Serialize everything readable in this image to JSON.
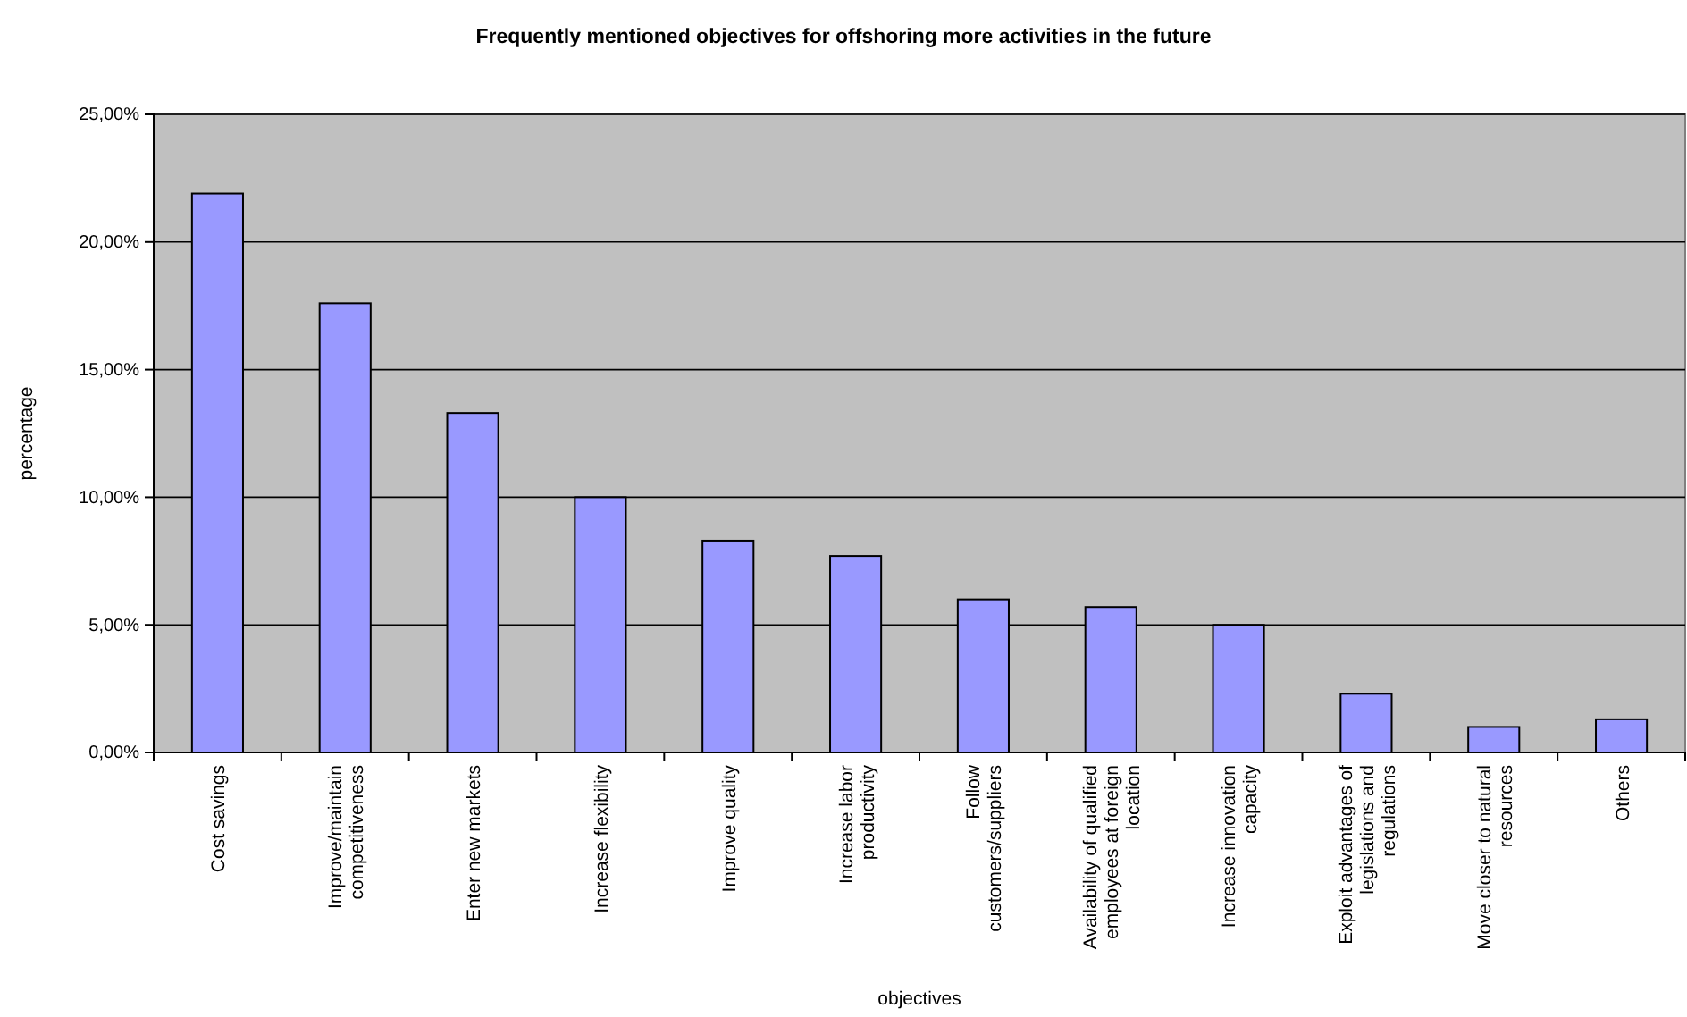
{
  "chart_data": {
    "type": "bar",
    "title": "Frequently mentioned objectives for offshoring more activities in the future",
    "xlabel": "objectives",
    "ylabel": "percentage",
    "categories": [
      "Cost savings",
      "Improve/maintain competitiveness",
      "Enter new markets",
      "Increase flexibility",
      "Improve quality",
      "Increase labor productivity",
      "Follow customers/suppliers",
      "Availability of qualified employees at foreign location",
      "Increase innovation capacity",
      "Exploit advantages of legislations and regulations",
      "Move closer to natural resources",
      "Others"
    ],
    "values": [
      21.9,
      17.6,
      13.3,
      10.0,
      8.3,
      7.7,
      6.0,
      5.7,
      5.0,
      2.3,
      1.0,
      1.3
    ],
    "color": "#9999ff",
    "ylim": [
      0,
      25
    ],
    "yticks": [
      {
        "value": 0,
        "label": "0,00%"
      },
      {
        "value": 5,
        "label": "5,00%"
      },
      {
        "value": 10,
        "label": "10,00%"
      },
      {
        "value": 15,
        "label": "15,00%"
      },
      {
        "value": 20,
        "label": "20,00%"
      },
      {
        "value": 25,
        "label": "25,00%"
      }
    ],
    "grid": "y"
  }
}
